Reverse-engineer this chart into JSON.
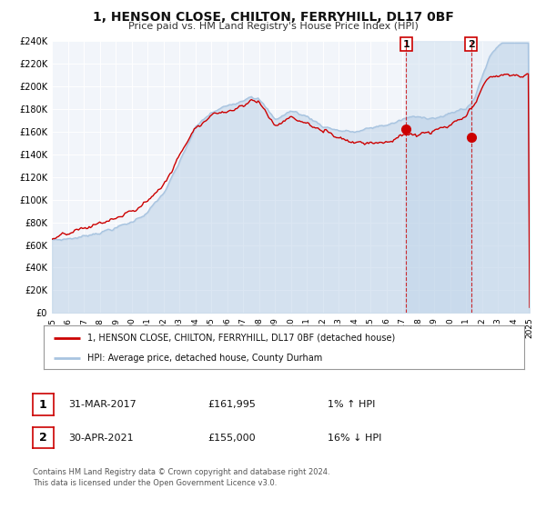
{
  "title": "1, HENSON CLOSE, CHILTON, FERRYHILL, DL17 0BF",
  "subtitle": "Price paid vs. HM Land Registry's House Price Index (HPI)",
  "xlim": [
    1995,
    2025
  ],
  "ylim": [
    0,
    240000
  ],
  "yticks": [
    0,
    20000,
    40000,
    60000,
    80000,
    100000,
    120000,
    140000,
    160000,
    180000,
    200000,
    220000,
    240000
  ],
  "ytick_labels": [
    "£0",
    "£20K",
    "£40K",
    "£60K",
    "£80K",
    "£100K",
    "£120K",
    "£140K",
    "£160K",
    "£180K",
    "£200K",
    "£220K",
    "£240K"
  ],
  "hpi_color": "#a8c4e0",
  "price_color": "#cc0000",
  "sale1_x": 2017.25,
  "sale1_y": 161995,
  "sale2_x": 2021.33,
  "sale2_y": 155000,
  "legend_price_label": "1, HENSON CLOSE, CHILTON, FERRYHILL, DL17 0BF (detached house)",
  "legend_hpi_label": "HPI: Average price, detached house, County Durham",
  "row1_date": "31-MAR-2017",
  "row1_price": "£161,995",
  "row1_hpi": "1% ↑ HPI",
  "row2_date": "30-APR-2021",
  "row2_price": "£155,000",
  "row2_hpi": "16% ↓ HPI",
  "footnote1": "Contains HM Land Registry data © Crown copyright and database right 2024.",
  "footnote2": "This data is licensed under the Open Government Licence v3.0."
}
